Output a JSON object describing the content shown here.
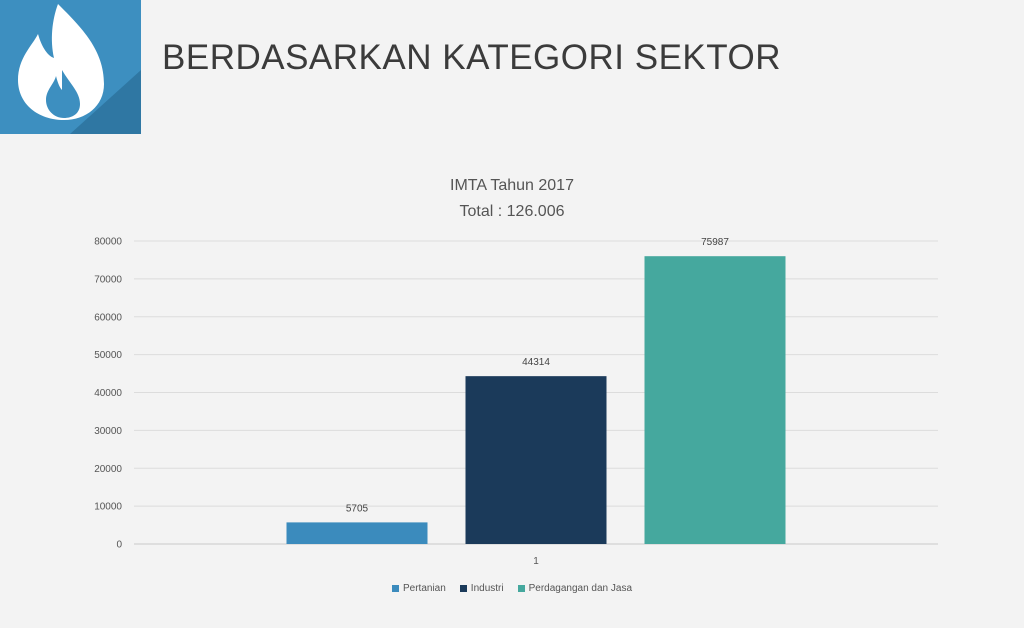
{
  "slide": {
    "title": "BERDASARKAN KATEGORI SEKTOR",
    "logo_icon": "flame-icon",
    "logo_color": "#3d8fc0"
  },
  "chart_data": {
    "type": "bar",
    "title": "IMTA Tahun 2017",
    "subtitle": "Total : 126.006",
    "categories": [
      "1"
    ],
    "series": [
      {
        "name": "Pertanian",
        "values": [
          5705
        ],
        "color": "#3b8bbd",
        "label": "5705"
      },
      {
        "name": "Industri",
        "values": [
          44314
        ],
        "color": "#1b3a5a",
        "label": "44314"
      },
      {
        "name": "Perdagangan dan Jasa",
        "values": [
          75987
        ],
        "color": "#45a89e",
        "label": "75987"
      }
    ],
    "ylim": [
      0,
      80000
    ],
    "yticks": [
      0,
      10000,
      20000,
      30000,
      40000,
      50000,
      60000,
      70000,
      80000
    ],
    "ytick_labels": [
      "0",
      "10000",
      "20000",
      "30000",
      "40000",
      "50000",
      "60000",
      "70000",
      "80000"
    ],
    "grid": true,
    "legend_position": "bottom"
  }
}
